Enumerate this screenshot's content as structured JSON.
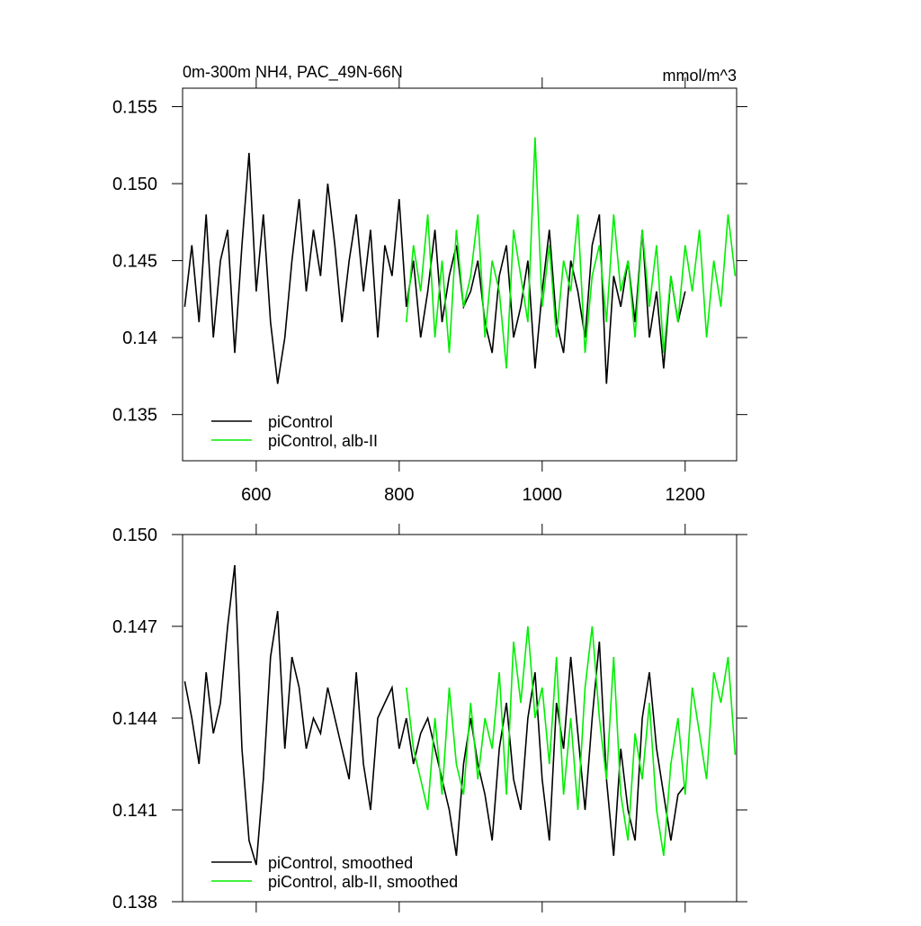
{
  "chart_data": [
    {
      "type": "line",
      "title": "0m-300m NH4, PAC_49N-66N",
      "units": "mmol/m^3",
      "xlim": [
        497,
        1272
      ],
      "xticks": [
        600,
        800,
        1000,
        1200
      ],
      "ylim": [
        0.132,
        0.1562
      ],
      "yticks": [
        0.155,
        {
          "value": 0.15,
          "label": "0.150"
        },
        0.145,
        0.14,
        0.135
      ],
      "series": [
        {
          "name": "piControl",
          "color": "#000000",
          "x": [
            500,
            510,
            520,
            530,
            540,
            550,
            560,
            570,
            580,
            590,
            600,
            610,
            620,
            630,
            640,
            650,
            660,
            670,
            680,
            690,
            700,
            710,
            720,
            730,
            740,
            750,
            760,
            770,
            780,
            790,
            800,
            810,
            820,
            830,
            840,
            850,
            860,
            870,
            880,
            890,
            900,
            910,
            920,
            930,
            940,
            950,
            960,
            970,
            980,
            990,
            1000,
            1010,
            1020,
            1030,
            1040,
            1050,
            1060,
            1070,
            1080,
            1090,
            1100,
            1110,
            1120,
            1130,
            1140,
            1150,
            1160,
            1170,
            1180,
            1190,
            1200
          ],
          "values": [
            0.142,
            0.146,
            0.141,
            0.148,
            0.14,
            0.145,
            0.147,
            0.139,
            0.146,
            0.152,
            0.143,
            0.148,
            0.141,
            0.137,
            0.14,
            0.145,
            0.149,
            0.143,
            0.147,
            0.144,
            0.15,
            0.146,
            0.141,
            0.145,
            0.148,
            0.143,
            0.147,
            0.14,
            0.146,
            0.144,
            0.149,
            0.142,
            0.145,
            0.14,
            0.143,
            0.147,
            0.141,
            0.144,
            0.146,
            0.142,
            0.143,
            0.145,
            0.141,
            0.139,
            0.144,
            0.146,
            0.14,
            0.142,
            0.145,
            0.138,
            0.143,
            0.147,
            0.141,
            0.139,
            0.145,
            0.143,
            0.14,
            0.146,
            0.148,
            0.137,
            0.144,
            0.142,
            0.145,
            0.141,
            0.147,
            0.14,
            0.143,
            0.138,
            0.144,
            0.141,
            0.143
          ]
        },
        {
          "name": "piControl, alb-II",
          "color": "#00ee00",
          "x": [
            810,
            820,
            830,
            840,
            850,
            860,
            870,
            880,
            890,
            900,
            910,
            920,
            930,
            940,
            950,
            960,
            970,
            980,
            990,
            1000,
            1010,
            1020,
            1030,
            1040,
            1050,
            1060,
            1070,
            1080,
            1090,
            1100,
            1110,
            1120,
            1130,
            1140,
            1150,
            1160,
            1170,
            1180,
            1190,
            1200,
            1210,
            1220,
            1230,
            1240,
            1250,
            1260,
            1270
          ],
          "values": [
            0.141,
            0.146,
            0.143,
            0.148,
            0.14,
            0.145,
            0.139,
            0.147,
            0.142,
            0.144,
            0.148,
            0.14,
            0.145,
            0.143,
            0.138,
            0.147,
            0.144,
            0.141,
            0.153,
            0.142,
            0.146,
            0.14,
            0.145,
            0.143,
            0.148,
            0.139,
            0.144,
            0.146,
            0.141,
            0.148,
            0.143,
            0.145,
            0.14,
            0.147,
            0.142,
            0.146,
            0.139,
            0.144,
            0.141,
            0.146,
            0.143,
            0.147,
            0.14,
            0.145,
            0.142,
            0.148,
            0.144
          ]
        }
      ]
    },
    {
      "type": "line",
      "xlim": [
        497,
        1272
      ],
      "xticks": [
        600,
        800,
        1000,
        1200
      ],
      "ylim": [
        0.138,
        0.15
      ],
      "yticks": [
        {
          "value": 0.15,
          "label": "0.150"
        },
        0.147,
        0.144,
        0.141,
        0.138
      ],
      "series": [
        {
          "name": "piControl, smoothed",
          "color": "#000000",
          "x": [
            500,
            510,
            520,
            530,
            540,
            550,
            560,
            570,
            580,
            590,
            600,
            610,
            620,
            630,
            640,
            650,
            660,
            670,
            680,
            690,
            700,
            710,
            720,
            730,
            740,
            750,
            760,
            770,
            780,
            790,
            800,
            810,
            820,
            830,
            840,
            850,
            860,
            870,
            880,
            890,
            900,
            910,
            920,
            930,
            940,
            950,
            960,
            970,
            980,
            990,
            1000,
            1010,
            1020,
            1030,
            1040,
            1050,
            1060,
            1070,
            1080,
            1090,
            1100,
            1110,
            1120,
            1130,
            1140,
            1150,
            1160,
            1170,
            1180,
            1190,
            1200
          ],
          "values": [
            0.1452,
            0.144,
            0.1425,
            0.1455,
            0.1435,
            0.1445,
            0.147,
            0.149,
            0.143,
            0.14,
            0.1392,
            0.142,
            0.146,
            0.1475,
            0.143,
            0.146,
            0.145,
            0.143,
            0.144,
            0.1435,
            0.145,
            0.144,
            0.143,
            0.142,
            0.1455,
            0.1425,
            0.141,
            0.144,
            0.1445,
            0.145,
            0.143,
            0.144,
            0.1425,
            0.1435,
            0.144,
            0.143,
            0.142,
            0.141,
            0.1395,
            0.1425,
            0.144,
            0.1425,
            0.1415,
            0.14,
            0.143,
            0.1445,
            0.142,
            0.141,
            0.144,
            0.1455,
            0.142,
            0.14,
            0.1445,
            0.143,
            0.146,
            0.1435,
            0.141,
            0.144,
            0.1465,
            0.142,
            0.1395,
            0.143,
            0.141,
            0.14,
            0.144,
            0.1455,
            0.143,
            0.1415,
            0.14,
            0.1415,
            0.1418
          ]
        },
        {
          "name": "piControl, alb-II, smoothed",
          "color": "#00ee00",
          "x": [
            810,
            820,
            830,
            840,
            850,
            860,
            870,
            880,
            890,
            900,
            910,
            920,
            930,
            940,
            950,
            960,
            970,
            980,
            990,
            1000,
            1010,
            1020,
            1030,
            1040,
            1050,
            1060,
            1070,
            1080,
            1090,
            1100,
            1110,
            1120,
            1130,
            1140,
            1150,
            1160,
            1170,
            1180,
            1190,
            1200,
            1210,
            1220,
            1230,
            1240,
            1250,
            1260,
            1270
          ],
          "values": [
            0.145,
            0.143,
            0.142,
            0.141,
            0.144,
            0.1415,
            0.145,
            0.1425,
            0.1415,
            0.1445,
            0.142,
            0.144,
            0.143,
            0.1455,
            0.1415,
            0.1465,
            0.1445,
            0.147,
            0.144,
            0.145,
            0.1425,
            0.146,
            0.1415,
            0.144,
            0.141,
            0.145,
            0.147,
            0.144,
            0.142,
            0.146,
            0.1415,
            0.14,
            0.1435,
            0.142,
            0.1445,
            0.141,
            0.1395,
            0.1425,
            0.144,
            0.1415,
            0.145,
            0.1435,
            0.142,
            0.1455,
            0.1445,
            0.146,
            0.1428
          ]
        }
      ]
    }
  ]
}
